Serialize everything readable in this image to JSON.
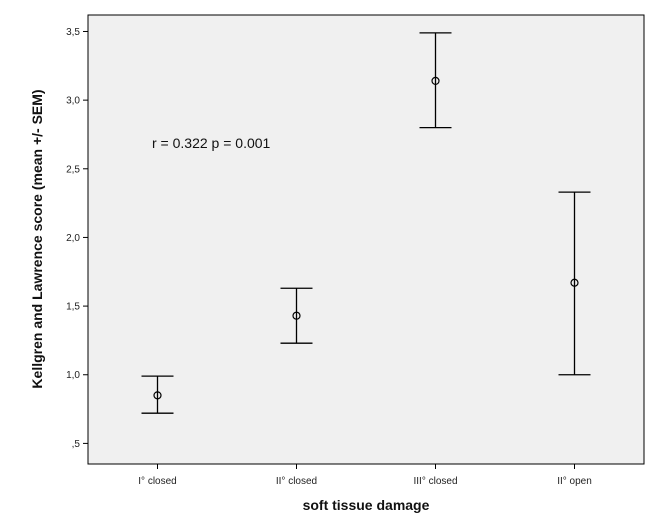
{
  "chart_data": {
    "type": "errorbar",
    "xlabel": "soft tissue damage",
    "ylabel": "Kellgren and Lawrence score (mean +/- SEM)",
    "categories": [
      "I° closed",
      "II° closed",
      "III° closed",
      "II° open"
    ],
    "series": [
      {
        "mean": [
          0.85,
          1.43,
          3.14,
          1.67
        ],
        "lower": [
          0.72,
          1.23,
          2.8,
          1.0
        ],
        "upper": [
          0.99,
          1.63,
          3.49,
          2.33
        ]
      }
    ],
    "ylim": [
      0.35,
      3.62
    ],
    "yticks": [
      0.5,
      1.0,
      1.5,
      2.0,
      2.5,
      3.0,
      3.5
    ],
    "ytick_labels": [
      ",5",
      "1,0",
      "1,5",
      "2,0",
      "2,5",
      "3,0",
      "3,5"
    ],
    "annotation": "r = 0.322 p = 0.001",
    "grid": false,
    "background": "#f0f0f0",
    "frame_color": "#000000"
  }
}
